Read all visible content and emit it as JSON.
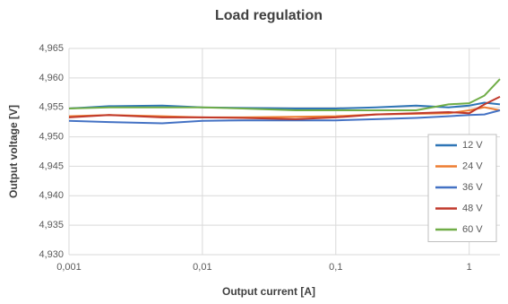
{
  "chart_data": {
    "type": "line",
    "title": "Load regulation",
    "x_label": "Output current [A]",
    "y_label": "Output voltage [V]",
    "x": [
      0.001,
      0.002,
      0.005,
      0.01,
      0.02,
      0.05,
      0.1,
      0.2,
      0.4,
      0.7,
      1,
      1.3,
      1.7
    ],
    "x_scale": "log",
    "grid": true,
    "legend": "right",
    "xlim": [
      0.001,
      1.7
    ],
    "xticks": [
      {
        "value": 0.001,
        "label": "0,001"
      },
      {
        "value": 0.01,
        "label": "0,01"
      },
      {
        "value": 0.1,
        "label": "0,1"
      },
      1
    ],
    "ylim": [
      4.93,
      4.965
    ],
    "yticks": [
      {
        "value": 4.93,
        "label": "4,930"
      },
      {
        "value": 4.935,
        "label": "4,935"
      },
      {
        "value": 4.94,
        "label": "4,940"
      },
      {
        "value": 4.945,
        "label": "4,945"
      },
      {
        "value": 4.95,
        "label": "4,950"
      },
      {
        "value": 4.955,
        "label": "4,955"
      },
      {
        "value": 4.96,
        "label": "4,960"
      },
      {
        "value": 4.965,
        "label": "4,965"
      }
    ],
    "series": [
      {
        "name": "12 V",
        "color": "#2e75b6",
        "values": [
          4.9548,
          4.9552,
          4.9553,
          4.955,
          4.9549,
          4.9548,
          4.9548,
          4.955,
          4.9553,
          4.955,
          4.9553,
          4.9558,
          4.9555
        ]
      },
      {
        "name": "24 V",
        "color": "#ed7d31",
        "values": [
          4.9535,
          4.9537,
          4.9535,
          4.9533,
          4.9533,
          4.9534,
          4.9535,
          4.9538,
          4.9539,
          4.954,
          4.9545,
          4.955,
          4.9545
        ]
      },
      {
        "name": "36 V",
        "color": "#4472c4",
        "values": [
          4.9527,
          4.9525,
          4.9523,
          4.9527,
          4.9528,
          4.9528,
          4.9528,
          4.953,
          4.9532,
          4.9535,
          4.9537,
          4.9538,
          4.9545
        ]
      },
      {
        "name": "48 V",
        "color": "#c0392b",
        "values": [
          4.9533,
          4.9537,
          4.9533,
          4.9533,
          4.9532,
          4.953,
          4.9533,
          4.9538,
          4.954,
          4.9542,
          4.954,
          4.9555,
          4.9568
        ]
      },
      {
        "name": "60 V",
        "color": "#70ad47",
        "values": [
          4.9548,
          4.955,
          4.955,
          4.955,
          4.9548,
          4.9545,
          4.9545,
          4.9545,
          4.9545,
          4.9555,
          4.9557,
          4.957,
          4.9598
        ]
      }
    ]
  }
}
